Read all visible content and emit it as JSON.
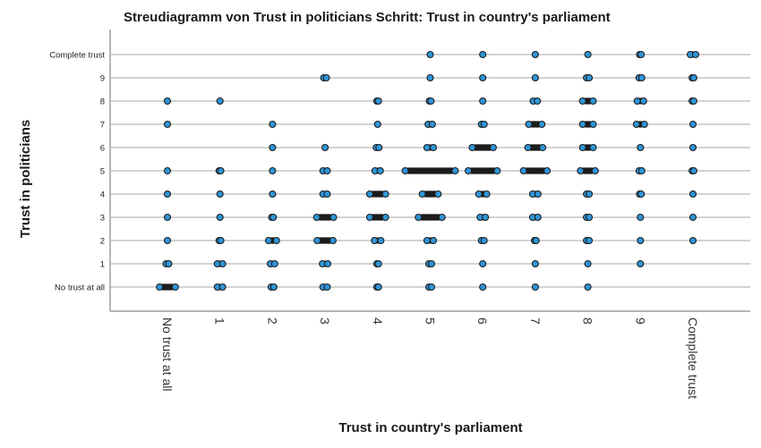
{
  "chart_data": {
    "type": "scatter",
    "title": "Streudiagramm von Trust in politicians Schritt: Trust in country's parliament",
    "xlabel": "Trust in country's parliament",
    "ylabel": "Trust in politicians",
    "x_categories": [
      "No trust at all",
      "1",
      "2",
      "3",
      "4",
      "5",
      "6",
      "7",
      "8",
      "9",
      "Complete trust"
    ],
    "y_categories": [
      "No trust at all",
      "1",
      "2",
      "3",
      "4",
      "5",
      "6",
      "7",
      "8",
      "9",
      "Complete trust"
    ],
    "xlim": [
      -1,
      11
    ],
    "ylim": [
      -1,
      11
    ],
    "grid": "horizontal",
    "legend": "none",
    "colors": {
      "marker_fill": "#2e95d8",
      "marker_edge": "#1c1c1c",
      "grid": "#b9b9b9"
    },
    "points": [
      {
        "x": 0,
        "y": 0,
        "spread": 0.3
      },
      {
        "x": 0,
        "y": 1,
        "spread": 0.05
      },
      {
        "x": 0,
        "y": 2,
        "spread": 0
      },
      {
        "x": 0,
        "y": 3,
        "spread": 0
      },
      {
        "x": 0,
        "y": 4,
        "spread": 0
      },
      {
        "x": 0,
        "y": 5,
        "spread": 0
      },
      {
        "x": 0,
        "y": 7,
        "spread": 0
      },
      {
        "x": 0,
        "y": 8,
        "spread": 0
      },
      {
        "x": 1,
        "y": 0,
        "spread": 0.1
      },
      {
        "x": 1,
        "y": 1,
        "spread": 0.1
      },
      {
        "x": 1,
        "y": 2,
        "spread": 0.03
      },
      {
        "x": 1,
        "y": 3,
        "spread": 0
      },
      {
        "x": 1,
        "y": 4,
        "spread": 0
      },
      {
        "x": 1,
        "y": 5,
        "spread": 0.03
      },
      {
        "x": 1,
        "y": 8,
        "spread": 0
      },
      {
        "x": 2,
        "y": 0,
        "spread": 0.05
      },
      {
        "x": 2,
        "y": 1,
        "spread": 0.08
      },
      {
        "x": 2,
        "y": 2,
        "spread": 0.15
      },
      {
        "x": 2,
        "y": 3,
        "spread": 0.03
      },
      {
        "x": 2,
        "y": 4,
        "spread": 0
      },
      {
        "x": 2,
        "y": 5,
        "spread": 0
      },
      {
        "x": 2,
        "y": 6,
        "spread": 0
      },
      {
        "x": 2,
        "y": 7,
        "spread": 0
      },
      {
        "x": 3,
        "y": 0,
        "spread": 0.08
      },
      {
        "x": 3,
        "y": 1,
        "spread": 0.1
      },
      {
        "x": 3,
        "y": 2,
        "spread": 0.3
      },
      {
        "x": 3,
        "y": 3,
        "spread": 0.32
      },
      {
        "x": 3,
        "y": 4,
        "spread": 0.08
      },
      {
        "x": 3,
        "y": 5,
        "spread": 0.08
      },
      {
        "x": 3,
        "y": 6,
        "spread": 0
      },
      {
        "x": 3,
        "y": 9,
        "spread": 0.05
      },
      {
        "x": 4,
        "y": 0,
        "spread": 0.03
      },
      {
        "x": 4,
        "y": 1,
        "spread": 0.03
      },
      {
        "x": 4,
        "y": 2,
        "spread": 0.12
      },
      {
        "x": 4,
        "y": 3,
        "spread": 0.3
      },
      {
        "x": 4,
        "y": 4,
        "spread": 0.3
      },
      {
        "x": 4,
        "y": 5,
        "spread": 0.1
      },
      {
        "x": 4,
        "y": 6,
        "spread": 0.05
      },
      {
        "x": 4,
        "y": 7,
        "spread": 0
      },
      {
        "x": 4,
        "y": 8,
        "spread": 0.03
      },
      {
        "x": 5,
        "y": 0,
        "spread": 0.05
      },
      {
        "x": 5,
        "y": 1,
        "spread": 0.05
      },
      {
        "x": 5,
        "y": 2,
        "spread": 0.12
      },
      {
        "x": 5,
        "y": 3,
        "spread": 0.45
      },
      {
        "x": 5,
        "y": 4,
        "spread": 0.3
      },
      {
        "x": 5,
        "y": 5,
        "spread": 0.95
      },
      {
        "x": 5,
        "y": 6,
        "spread": 0.12
      },
      {
        "x": 5,
        "y": 7,
        "spread": 0.08
      },
      {
        "x": 5,
        "y": 8,
        "spread": 0.03
      },
      {
        "x": 5,
        "y": 9,
        "spread": 0
      },
      {
        "x": 5,
        "y": 10,
        "spread": 0
      },
      {
        "x": 6,
        "y": 0,
        "spread": 0
      },
      {
        "x": 6,
        "y": 1,
        "spread": 0
      },
      {
        "x": 6,
        "y": 2,
        "spread": 0.05
      },
      {
        "x": 6,
        "y": 3,
        "spread": 0.1
      },
      {
        "x": 6,
        "y": 4,
        "spread": 0.15
      },
      {
        "x": 6,
        "y": 5,
        "spread": 0.55
      },
      {
        "x": 6,
        "y": 6,
        "spread": 0.4
      },
      {
        "x": 6,
        "y": 7,
        "spread": 0.05
      },
      {
        "x": 6,
        "y": 8,
        "spread": 0
      },
      {
        "x": 6,
        "y": 9,
        "spread": 0
      },
      {
        "x": 6,
        "y": 10,
        "spread": 0
      },
      {
        "x": 7,
        "y": 0,
        "spread": 0
      },
      {
        "x": 7,
        "y": 1,
        "spread": 0
      },
      {
        "x": 7,
        "y": 2,
        "spread": 0.03
      },
      {
        "x": 7,
        "y": 3,
        "spread": 0.1
      },
      {
        "x": 7,
        "y": 4,
        "spread": 0.1
      },
      {
        "x": 7,
        "y": 5,
        "spread": 0.45
      },
      {
        "x": 7,
        "y": 6,
        "spread": 0.28
      },
      {
        "x": 7,
        "y": 7,
        "spread": 0.25
      },
      {
        "x": 7,
        "y": 8,
        "spread": 0.08
      },
      {
        "x": 7,
        "y": 9,
        "spread": 0
      },
      {
        "x": 7,
        "y": 10,
        "spread": 0
      },
      {
        "x": 8,
        "y": 0,
        "spread": 0
      },
      {
        "x": 8,
        "y": 1,
        "spread": 0
      },
      {
        "x": 8,
        "y": 2,
        "spread": 0.05
      },
      {
        "x": 8,
        "y": 3,
        "spread": 0.05
      },
      {
        "x": 8,
        "y": 4,
        "spread": 0.05
      },
      {
        "x": 8,
        "y": 5,
        "spread": 0.28
      },
      {
        "x": 8,
        "y": 6,
        "spread": 0.2
      },
      {
        "x": 8,
        "y": 7,
        "spread": 0.2
      },
      {
        "x": 8,
        "y": 8,
        "spread": 0.2
      },
      {
        "x": 8,
        "y": 9,
        "spread": 0.05
      },
      {
        "x": 8,
        "y": 10,
        "spread": 0
      },
      {
        "x": 9,
        "y": 1,
        "spread": 0
      },
      {
        "x": 9,
        "y": 2,
        "spread": 0
      },
      {
        "x": 9,
        "y": 3,
        "spread": 0
      },
      {
        "x": 9,
        "y": 4,
        "spread": 0.03
      },
      {
        "x": 9,
        "y": 5,
        "spread": 0.05
      },
      {
        "x": 9,
        "y": 6,
        "spread": 0
      },
      {
        "x": 9,
        "y": 7,
        "spread": 0.15
      },
      {
        "x": 9,
        "y": 8,
        "spread": 0.12
      },
      {
        "x": 9,
        "y": 9,
        "spread": 0.05
      },
      {
        "x": 9,
        "y": 10,
        "spread": 0.03
      },
      {
        "x": 10,
        "y": 2,
        "spread": 0
      },
      {
        "x": 10,
        "y": 3,
        "spread": 0
      },
      {
        "x": 10,
        "y": 4,
        "spread": 0
      },
      {
        "x": 10,
        "y": 5,
        "spread": 0.03
      },
      {
        "x": 10,
        "y": 6,
        "spread": 0
      },
      {
        "x": 10,
        "y": 7,
        "spread": 0
      },
      {
        "x": 10,
        "y": 8,
        "spread": 0.03
      },
      {
        "x": 10,
        "y": 9,
        "spread": 0.03
      },
      {
        "x": 10,
        "y": 10,
        "spread": 0.1
      }
    ]
  }
}
